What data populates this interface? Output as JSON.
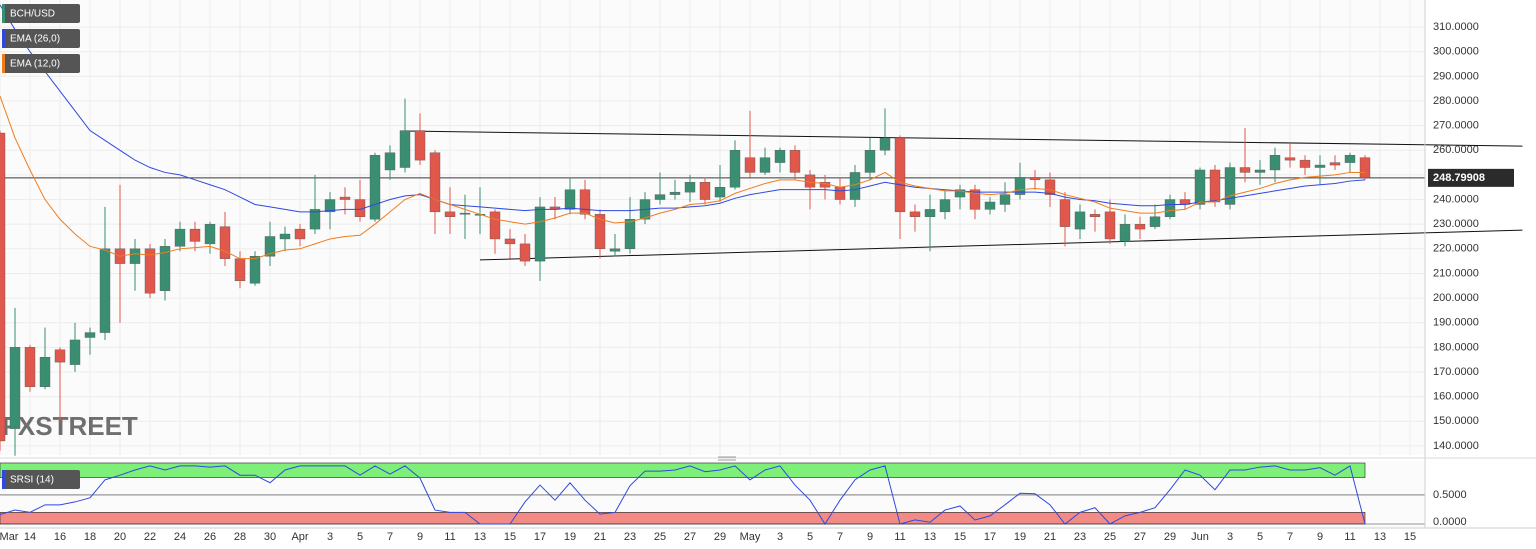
{
  "chart_data": [
    {
      "type": "candlestick",
      "title": "BCH/USD",
      "watermark": "FXSTREET",
      "up_color": "#3a8f72",
      "down_color": "#e0574c",
      "grid": true,
      "categories": [
        "Mar",
        null,
        "14",
        null,
        "16",
        null,
        "18",
        null,
        "20",
        null,
        "22",
        null,
        "24",
        null,
        "26",
        null,
        "28",
        null,
        "30",
        null,
        "Apr",
        null,
        "3",
        null,
        "5",
        null,
        "7",
        null,
        "9",
        null,
        "11",
        null,
        "13",
        null,
        "15",
        null,
        "17",
        null,
        "19",
        null,
        "21",
        null,
        "23",
        null,
        "25",
        null,
        "27",
        null,
        "29",
        null,
        "May",
        null,
        "3",
        null,
        "5",
        null,
        "7",
        null,
        "9",
        null,
        "11",
        null,
        "13",
        null,
        "15",
        null,
        "17",
        null,
        "19",
        null,
        "21",
        null,
        "23",
        null,
        "25",
        null,
        "27",
        null,
        "29",
        null,
        "Jun",
        null,
        "3",
        null,
        "5",
        null,
        "7",
        null,
        "9",
        null,
        "11",
        null,
        "13",
        null,
        "15"
      ],
      "open": [
        267,
        147,
        180,
        164,
        179,
        173,
        184,
        186,
        220,
        214,
        220,
        203,
        221,
        228,
        222,
        229,
        216,
        206,
        217,
        224,
        228,
        228,
        235,
        241,
        240,
        232,
        252,
        253,
        268,
        259,
        235,
        234,
        234,
        235,
        224,
        222,
        215,
        237,
        236,
        244,
        234,
        219,
        220,
        232,
        240,
        242,
        243,
        247,
        241,
        245,
        257,
        251,
        255,
        260,
        250,
        247,
        245,
        240,
        251,
        260,
        265,
        235,
        233,
        235,
        241,
        244,
        236,
        238,
        242,
        249,
        248,
        240,
        228,
        234,
        235,
        223,
        230,
        229,
        233,
        240,
        238,
        252,
        238,
        253,
        251,
        252,
        257,
        256,
        253,
        255,
        255,
        257,
        null,
        null,
        null
      ],
      "high": [
        268,
        196,
        181,
        188,
        180,
        190,
        188,
        237,
        246,
        224,
        222,
        224,
        231,
        231,
        231,
        235,
        219,
        219,
        231,
        229,
        230,
        250,
        243,
        245,
        248,
        259,
        262,
        281,
        275,
        260,
        245,
        242,
        245,
        236,
        228,
        226,
        241,
        241,
        249,
        248,
        236,
        226,
        241,
        243,
        251,
        248,
        250,
        249,
        254,
        264,
        276,
        261,
        261,
        262,
        252,
        250,
        249,
        254,
        265,
        277,
        266,
        238,
        242,
        244,
        246,
        246,
        241,
        247,
        255,
        252,
        251,
        243,
        238,
        236,
        240,
        234,
        233,
        238,
        242,
        243,
        253,
        254,
        255,
        269,
        256,
        261,
        263,
        258,
        258,
        258,
        259,
        258,
        null,
        null,
        null
      ],
      "low": [
        138,
        136,
        162,
        163,
        150,
        170,
        177,
        183,
        190,
        203,
        200,
        199,
        219,
        219,
        218,
        213,
        204,
        205,
        213,
        219,
        221,
        226,
        228,
        234,
        231,
        231,
        248,
        251,
        254,
        226,
        226,
        224,
        226,
        218,
        216,
        213,
        207,
        232,
        234,
        232,
        216,
        217,
        218,
        230,
        238,
        240,
        239,
        238,
        239,
        244,
        249,
        250,
        251,
        248,
        236,
        240,
        238,
        237,
        248,
        258,
        224,
        227,
        219,
        232,
        236,
        232,
        234,
        235,
        240,
        244,
        237,
        221,
        224,
        227,
        222,
        221,
        224,
        228,
        232,
        236,
        236,
        237,
        236,
        247,
        246,
        247,
        253,
        250,
        246,
        252,
        251,
        248,
        null,
        null,
        null
      ],
      "close": [
        142,
        180,
        164,
        176,
        174,
        183,
        186,
        220,
        214,
        220,
        202,
        221,
        228,
        223,
        230,
        216,
        207,
        217,
        225,
        226,
        224,
        236,
        240,
        240,
        233,
        258,
        259,
        268,
        256,
        235,
        233,
        234.5,
        234,
        224,
        222,
        215,
        237,
        236,
        244,
        234,
        220,
        220,
        232,
        240,
        242,
        243,
        247,
        240,
        245,
        260,
        251,
        257,
        260,
        251,
        245,
        245,
        240,
        251,
        260,
        265,
        235,
        233,
        236,
        240,
        244,
        236,
        239,
        242,
        249,
        248,
        242,
        229,
        235,
        233,
        224,
        230,
        228,
        233,
        240,
        238,
        252,
        239,
        253,
        251,
        252,
        258,
        256,
        253,
        254,
        254,
        258,
        248.8,
        null,
        null,
        null
      ],
      "series": [
        {
          "name": "EMA (26,0)",
          "color": "#2f49e0",
          "values": [
            319,
            309,
            300,
            292,
            284,
            276,
            268,
            264,
            260,
            256,
            253,
            251,
            250,
            248,
            246,
            244,
            241,
            238,
            237,
            236,
            235,
            235,
            235.5,
            236,
            236,
            238,
            240,
            241.5,
            242,
            240,
            238,
            237.5,
            237,
            236.5,
            236,
            235.5,
            236,
            236,
            236.5,
            236,
            235.5,
            235.5,
            235.5,
            236,
            236.5,
            236.5,
            237,
            237.5,
            238.5,
            240.5,
            242,
            243,
            244,
            244,
            244,
            244,
            243.5,
            244,
            245.5,
            247,
            246,
            245,
            244.5,
            244,
            243.5,
            243,
            243,
            243,
            243,
            243,
            242.5,
            241,
            240,
            239.5,
            238.5,
            238,
            237.5,
            237.5,
            238,
            238,
            239,
            239.5,
            240.5,
            241.5,
            242.5,
            243.5,
            244.5,
            245.5,
            246,
            246.5,
            247.5,
            248,
            null,
            null,
            null
          ]
        },
        {
          "name": "EMA (12,0)",
          "color": "#f07c1c",
          "values": [
            282,
            265,
            252,
            240,
            232,
            226,
            221,
            219.5,
            217,
            218,
            217.5,
            218.5,
            220,
            220.5,
            221,
            219,
            216,
            216,
            218,
            219.5,
            220,
            222,
            224,
            225,
            225.5,
            230,
            235,
            240,
            242.5,
            240,
            238,
            236,
            234,
            232,
            231,
            230,
            231,
            232.5,
            234.5,
            234.5,
            232,
            230.5,
            231,
            232.5,
            234.5,
            236,
            238,
            238.5,
            239.5,
            242.5,
            244.5,
            246.5,
            248,
            248,
            247,
            246.5,
            245,
            246,
            248,
            251,
            247,
            245.5,
            244.5,
            243.5,
            243.5,
            242.5,
            242,
            242.5,
            244,
            244.5,
            244,
            242,
            240.5,
            239,
            236.5,
            235.5,
            234.5,
            234.5,
            235.5,
            236,
            239,
            239,
            241.5,
            243,
            244.5,
            246.5,
            248,
            249,
            249.5,
            250,
            251,
            251,
            null,
            null,
            null
          ]
        }
      ],
      "trendlines": [
        {
          "x": [
            27,
            101.5
          ],
          "y": [
            267.8,
            261.7
          ]
        },
        {
          "x": [
            32,
            101.5
          ],
          "y": [
            215.5,
            227.6
          ]
        }
      ],
      "last_price": {
        "value": 248.79908,
        "label": "248.79908"
      },
      "ylim": [
        136.3,
        321
      ],
      "yticks": [
        {
          "value": 140,
          "label": "140.0000"
        },
        {
          "value": 150,
          "label": "150.0000"
        },
        {
          "value": 160,
          "label": "160.0000"
        },
        {
          "value": 170,
          "label": "170.0000"
        },
        {
          "value": 180,
          "label": "180.0000"
        },
        {
          "value": 190,
          "label": "190.0000"
        },
        {
          "value": 200,
          "label": "200.0000"
        },
        {
          "value": 210,
          "label": "210.0000"
        },
        {
          "value": 220,
          "label": "220.0000"
        },
        {
          "value": 230,
          "label": "230.0000"
        },
        {
          "value": 240,
          "label": "240.0000"
        },
        {
          "value": 250,
          "label": "250.0000"
        },
        {
          "value": 260,
          "label": "260.0000"
        },
        {
          "value": 270,
          "label": "270.0000"
        },
        {
          "value": 280,
          "label": "280.0000"
        },
        {
          "value": 290,
          "label": "290.0000"
        },
        {
          "value": 300,
          "label": "300.0000"
        },
        {
          "value": 310,
          "label": "310.0000"
        }
      ]
    },
    {
      "type": "line",
      "ylim": [
        0,
        1.05
      ],
      "yticks": [
        {
          "value": 0,
          "label": "0.0000"
        },
        {
          "value": 0.5,
          "label": "0.5000"
        }
      ],
      "bands": [
        {
          "from": 0.8,
          "to": 1.05,
          "color": "#7ef07a"
        },
        {
          "from": 0,
          "to": 0.2,
          "color": "#f28b86"
        }
      ],
      "series": [
        {
          "name": "SRSI (14)",
          "color": "#2f49e0",
          "values": [
            0.16,
            0.24,
            0.2,
            0.33,
            0.33,
            0.38,
            0.45,
            0.76,
            0.84,
            0.93,
            1,
            0.93,
            1,
            1,
            0.98,
            1,
            0.84,
            0.84,
            0.71,
            0.93,
            1,
            1,
            1,
            1,
            0.84,
            1,
            0.86,
            1,
            0.79,
            0.24,
            0.2,
            0.2,
            0,
            0,
            0,
            0.38,
            0.67,
            0.41,
            0.71,
            0.41,
            0.17,
            0.2,
            0.66,
            0.91,
            0.91,
            0.93,
            1,
            0.9,
            0.93,
            1,
            0.76,
            0.93,
            1,
            0.67,
            0.41,
            0,
            0.41,
            0.76,
            0.93,
            1,
            0,
            0.07,
            0.03,
            0.24,
            0.31,
            0.07,
            0.14,
            0.33,
            0.53,
            0.52,
            0.33,
            0,
            0.2,
            0.28,
            0,
            0.14,
            0.2,
            0.28,
            0.59,
            0.93,
            0.84,
            0.59,
            0.93,
            0.93,
            0.98,
            1,
            0.93,
            0.93,
            0.97,
            0.84,
            1,
            0,
            null,
            null,
            null
          ]
        }
      ]
    }
  ]
}
